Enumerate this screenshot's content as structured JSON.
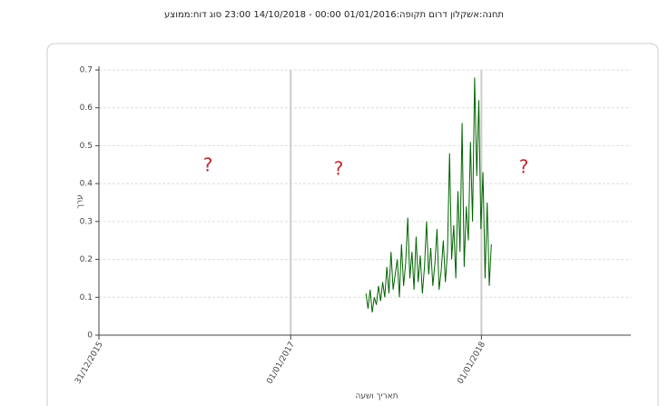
{
  "chart_data": {
    "type": "line",
    "title": "תחנה:אשקלון דרום תקופה:01/01/2016 00:00 - 14/10/2018 23:00 סוג דוח:ממוצע",
    "x_label": "תאריך ושעה",
    "y_label": "ערך",
    "annotations": [
      "?",
      "?",
      "?"
    ],
    "x": [
      "2017-05-25",
      "2017-05-29",
      "2017-06-02",
      "2017-06-06",
      "2017-06-10",
      "2017-06-14",
      "2017-06-18",
      "2017-06-22",
      "2017-06-26",
      "2017-06-30",
      "2017-07-04",
      "2017-07-08",
      "2017-07-12",
      "2017-07-16",
      "2017-07-20",
      "2017-07-24",
      "2017-07-28",
      "2017-08-01",
      "2017-08-05",
      "2017-08-09",
      "2017-08-13",
      "2017-08-17",
      "2017-08-21",
      "2017-08-25",
      "2017-08-29",
      "2017-09-02",
      "2017-09-06",
      "2017-09-10",
      "2017-09-14",
      "2017-09-18",
      "2017-09-22",
      "2017-09-26",
      "2017-09-30",
      "2017-10-04",
      "2017-10-08",
      "2017-10-12",
      "2017-10-16",
      "2017-10-20",
      "2017-10-24",
      "2017-10-28",
      "2017-11-01",
      "2017-11-05",
      "2017-11-09",
      "2017-11-13",
      "2017-11-17",
      "2017-11-21",
      "2017-11-25",
      "2017-11-29",
      "2017-12-03",
      "2017-12-07",
      "2017-12-11",
      "2017-12-15",
      "2017-12-19",
      "2017-12-23",
      "2017-12-27",
      "2017-12-31",
      "2018-01-04",
      "2018-01-08",
      "2018-01-12",
      "2018-01-16",
      "2018-01-20"
    ],
    "series": [
      {
        "color": "#006400",
        "values": [
          0.11,
          0.07,
          0.12,
          0.06,
          0.1,
          0.08,
          0.13,
          0.09,
          0.14,
          0.1,
          0.18,
          0.11,
          0.22,
          0.12,
          0.16,
          0.2,
          0.1,
          0.24,
          0.13,
          0.19,
          0.31,
          0.15,
          0.22,
          0.12,
          0.26,
          0.14,
          0.21,
          0.11,
          0.18,
          0.3,
          0.16,
          0.23,
          0.13,
          0.19,
          0.28,
          0.12,
          0.17,
          0.25,
          0.14,
          0.22,
          0.48,
          0.2,
          0.29,
          0.15,
          0.38,
          0.22,
          0.56,
          0.18,
          0.34,
          0.25,
          0.51,
          0.3,
          0.68,
          0.42,
          0.62,
          0.28,
          0.43,
          0.15,
          0.35,
          0.13,
          0.24
        ]
      }
    ],
    "xlim": [
      "2015-12-31",
      "2018-10-14"
    ],
    "xticks": [
      {
        "value": "2015-12-31",
        "label": "31/12/2015"
      },
      {
        "value": "2017-01-01",
        "label": "01/01/2017"
      },
      {
        "value": "2018-01-01",
        "label": "01/01/2018"
      }
    ],
    "ylim": [
      0,
      0.7
    ],
    "yticks": [
      0,
      0.1,
      0.2,
      0.3,
      0.4,
      0.5,
      0.6,
      0.7
    ],
    "grid": true
  }
}
